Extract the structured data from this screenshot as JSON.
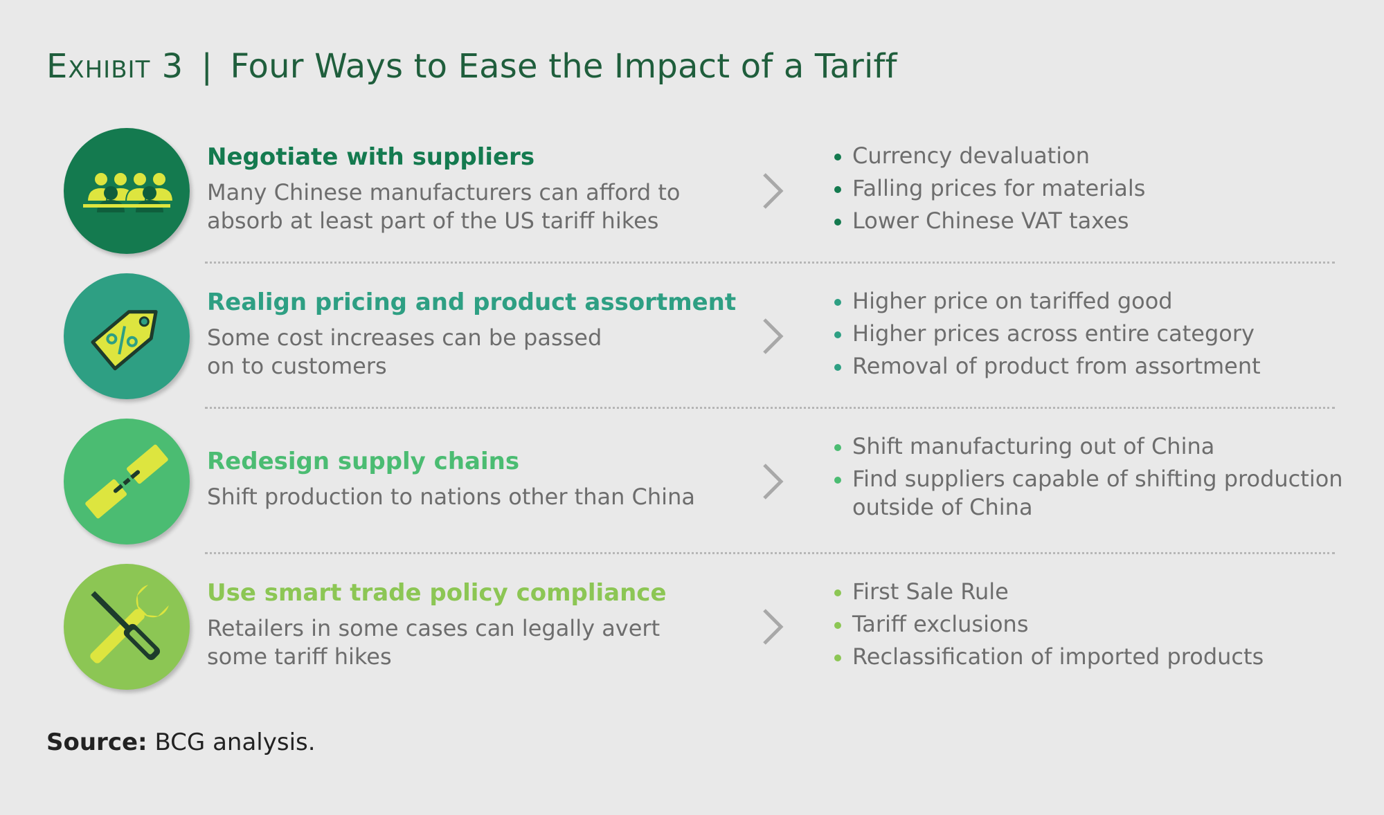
{
  "title": {
    "exhibit": "Exhibit 3",
    "separator": "|",
    "text": "Four Ways to Ease the Impact of a Tariff"
  },
  "rows": [
    {
      "heading": "Negotiate with suppliers",
      "description": "Many Chinese manufacturers can afford to absorb at least part of the US tariff hikes",
      "icon": "people-group-icon",
      "circle_color": "#147a4f",
      "heading_color": "#147a4f",
      "bullets": [
        "Currency devaluation",
        "Falling prices for materials",
        "Lower Chinese VAT taxes"
      ]
    },
    {
      "heading": "Realign pricing and product assortment",
      "description": "Some cost increases can be passed on to customers",
      "icon": "price-tag-icon",
      "circle_color": "#2e9f83",
      "heading_color": "#2e9f83",
      "bullets": [
        "Higher price on tariffed good",
        "Higher prices across entire category",
        "Removal of product from assortment"
      ]
    },
    {
      "heading": "Redesign supply chains",
      "description": "Shift production to nations other than China",
      "icon": "chain-link-icon",
      "circle_color": "#4bbc72",
      "heading_color": "#4bbc72",
      "bullets": [
        "Shift manufacturing out of China",
        "Find suppliers capable of shifting production outside of China"
      ]
    },
    {
      "heading": "Use smart trade policy compliance",
      "description": "Retailers in some cases can legally avert some tariff hikes",
      "icon": "wrench-screwdriver-icon",
      "circle_color": "#8cc654",
      "heading_color": "#8cc654",
      "bullets": [
        "First Sale Rule",
        "Tariff exclusions",
        "Reclassification of imported products"
      ]
    }
  ],
  "source": {
    "label": "Source:",
    "text": "BCG analysis."
  },
  "colors": {
    "icon_yellow": "#dde53f",
    "chevron": "#a8a8a8",
    "title": "#1f5e3c"
  }
}
